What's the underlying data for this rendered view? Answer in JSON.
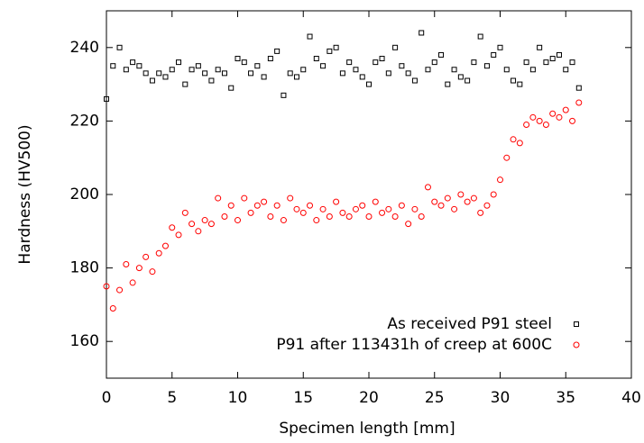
{
  "chart_data": {
    "type": "scatter",
    "xlabel": "Specimen length [mm]",
    "ylabel": "Hardness (HV500)",
    "x": [
      0,
      0.5,
      1,
      1.5,
      2,
      2.5,
      3,
      3.5,
      4,
      4.5,
      5,
      5.5,
      6,
      6.5,
      7,
      7.5,
      8,
      8.5,
      9,
      9.5,
      10,
      10.5,
      11,
      11.5,
      12,
      12.5,
      13,
      13.5,
      14,
      14.5,
      15,
      15.5,
      16,
      16.5,
      17,
      17.5,
      18,
      18.5,
      19,
      19.5,
      20,
      20.5,
      21,
      21.5,
      22,
      22.5,
      23,
      23.5,
      24,
      24.5,
      25,
      25.5,
      26,
      26.5,
      27,
      27.5,
      28,
      28.5,
      29,
      29.5,
      30,
      30.5,
      31,
      31.5,
      32,
      32.5,
      33,
      33.5,
      34,
      34.5,
      35,
      35.5,
      36
    ],
    "series": [
      {
        "name": "As received P91 steel",
        "color": "#000000",
        "marker": "square",
        "values": [
          226,
          235,
          240,
          234,
          236,
          235,
          233,
          231,
          233,
          232,
          234,
          236,
          230,
          234,
          235,
          233,
          231,
          234,
          233,
          229,
          237,
          236,
          233,
          235,
          232,
          237,
          239,
          227,
          233,
          232,
          234,
          243,
          237,
          235,
          239,
          240,
          233,
          236,
          234,
          232,
          230,
          236,
          237,
          233,
          240,
          235,
          233,
          231,
          244,
          234,
          236,
          238,
          230,
          234,
          232,
          231,
          236,
          243,
          235,
          238,
          240,
          234,
          231,
          230,
          236,
          234,
          240,
          236,
          237,
          238,
          234,
          236,
          229
        ]
      },
      {
        "name": "P91 after 113431h of creep at 600C",
        "color": "#ff0000",
        "marker": "circle",
        "values": [
          175,
          169,
          174,
          181,
          176,
          180,
          183,
          179,
          184,
          186,
          191,
          189,
          195,
          192,
          190,
          193,
          192,
          199,
          194,
          197,
          193,
          199,
          195,
          197,
          198,
          194,
          197,
          193,
          199,
          196,
          195,
          197,
          193,
          196,
          194,
          198,
          195,
          194,
          196,
          197,
          194,
          198,
          195,
          196,
          194,
          197,
          192,
          196,
          194,
          202,
          198,
          197,
          199,
          196,
          200,
          198,
          199,
          195,
          197,
          200,
          204,
          210,
          215,
          214,
          219,
          221,
          220,
          219,
          222,
          221,
          223,
          220,
          225
        ]
      }
    ],
    "xlim": [
      0,
      40
    ],
    "xticks": [
      0,
      5,
      10,
      15,
      20,
      25,
      30,
      35,
      40
    ],
    "ylim": [
      150,
      250
    ],
    "yticks": [
      160,
      180,
      200,
      220,
      240
    ],
    "legend": "lower right"
  }
}
